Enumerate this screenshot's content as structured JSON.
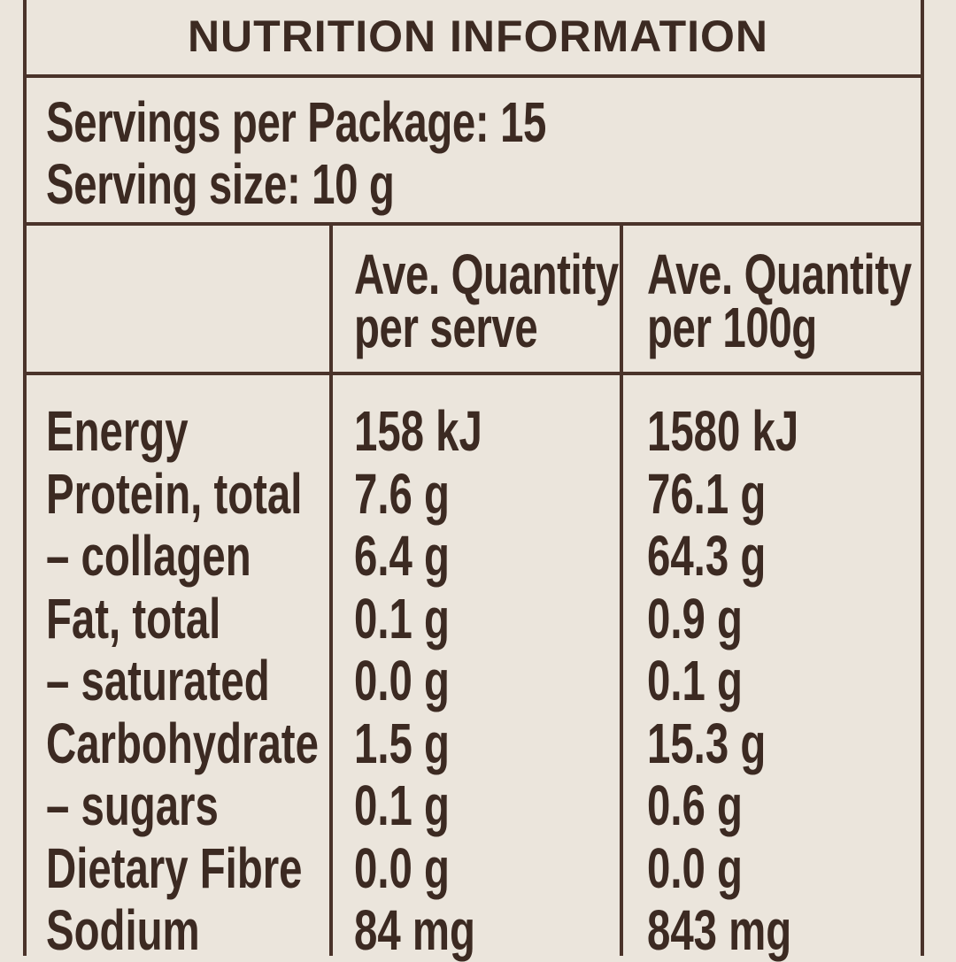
{
  "panel": {
    "title": "NUTRITION INFORMATION",
    "servings_per_package": "Servings per Package: 15",
    "serving_size": "Serving size: 10 g"
  },
  "columns": {
    "per_serve_line1": "Ave. Quantity",
    "per_serve_line2": "per serve",
    "per_100g_line1": "Ave. Quantity",
    "per_100g_line2": "per 100g"
  },
  "rows": [
    {
      "label": "Energy",
      "per_serve": "158 kJ",
      "per_100g": "1580 kJ"
    },
    {
      "label": "Protein, total",
      "per_serve": "7.6 g",
      "per_100g": "76.1 g"
    },
    {
      "label": "– collagen",
      "per_serve": "6.4 g",
      "per_100g": "64.3 g"
    },
    {
      "label": "Fat, total",
      "per_serve": "0.1 g",
      "per_100g": "0.9 g"
    },
    {
      "label": "– saturated",
      "per_serve": "0.0 g",
      "per_100g": "0.1 g"
    },
    {
      "label": "Carbohydrate",
      "per_serve": "1.5 g",
      "per_100g": "15.3 g"
    },
    {
      "label": "– sugars",
      "per_serve": "0.1 g",
      "per_100g": "0.6 g"
    },
    {
      "label": "Dietary Fibre",
      "per_serve": "0.0 g",
      "per_100g": "0.0 g"
    },
    {
      "label": "Sodium",
      "per_serve": "84 mg",
      "per_100g": "843 mg"
    }
  ],
  "colors": {
    "background": "#ebe5dc",
    "ink": "#3c2a22"
  }
}
